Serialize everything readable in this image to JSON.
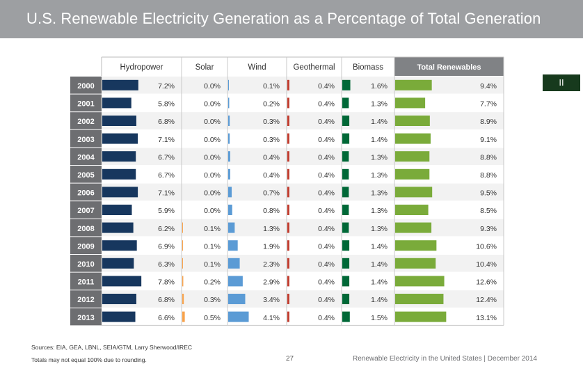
{
  "header": {
    "title": "U.S. Renewable Electricity Generation as a Percentage of Total Generation"
  },
  "section_tab": {
    "label": "II"
  },
  "footer": {
    "sources": "Sources: EIA, GEA, LBNL, SEIA/GTM, Larry Sherwood/IREC",
    "note": "Totals may not equal 100% due to rounding.",
    "page_number": "27",
    "publication": "Renewable Electricity in the United States  |  December 2014"
  },
  "colors": {
    "header_bg": "#9d9fa2",
    "year_bg": "#6d6e71",
    "row_alt": "#f2f2f2",
    "hydropower": "#17375e",
    "solar": "#f7a24b",
    "wind": "#5b9bd5",
    "geothermal": "#c0392b",
    "biomass": "#006837",
    "total": "#7aab3a",
    "total_header_bg": "#808285"
  },
  "chart_data": {
    "type": "table",
    "title": "",
    "categories": [
      "2000",
      "2001",
      "2002",
      "2003",
      "2004",
      "2005",
      "2006",
      "2007",
      "2008",
      "2009",
      "2010",
      "2011",
      "2012",
      "2013"
    ],
    "unit": "%",
    "series": [
      {
        "name": "Hydropower",
        "values": [
          7.2,
          5.8,
          6.8,
          7.1,
          6.7,
          6.7,
          7.1,
          5.9,
          6.2,
          6.9,
          6.3,
          7.8,
          6.8,
          6.6
        ]
      },
      {
        "name": "Solar",
        "values": [
          0.0,
          0.0,
          0.0,
          0.0,
          0.0,
          0.0,
          0.0,
          0.0,
          0.1,
          0.1,
          0.1,
          0.2,
          0.3,
          0.5
        ]
      },
      {
        "name": "Wind",
        "values": [
          0.1,
          0.2,
          0.3,
          0.3,
          0.4,
          0.4,
          0.7,
          0.8,
          1.3,
          1.9,
          2.3,
          2.9,
          3.4,
          4.1
        ]
      },
      {
        "name": "Geothermal",
        "values": [
          0.4,
          0.4,
          0.4,
          0.4,
          0.4,
          0.4,
          0.4,
          0.4,
          0.4,
          0.4,
          0.4,
          0.4,
          0.4,
          0.4
        ]
      },
      {
        "name": "Biomass",
        "values": [
          1.6,
          1.3,
          1.4,
          1.4,
          1.3,
          1.3,
          1.3,
          1.3,
          1.3,
          1.4,
          1.4,
          1.4,
          1.4,
          1.5
        ]
      },
      {
        "name": "Total Renewables",
        "values": [
          9.4,
          7.7,
          8.9,
          9.1,
          8.8,
          8.8,
          9.5,
          8.5,
          9.3,
          10.6,
          10.4,
          12.6,
          12.4,
          13.1
        ]
      }
    ]
  }
}
